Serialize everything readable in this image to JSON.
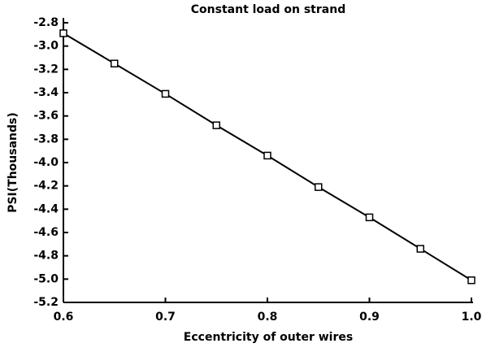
{
  "chart_data": {
    "type": "line",
    "title": "Constant load on strand",
    "xlabel": "Eccentricity of outer wires",
    "ylabel": "PSI(Thousands)",
    "x": [
      0.6,
      0.65,
      0.7,
      0.75,
      0.8,
      0.85,
      0.9,
      0.95,
      1.0
    ],
    "series": [
      {
        "color": "#000000",
        "values": [
          -2.89,
          -3.15,
          -3.41,
          -3.68,
          -3.94,
          -4.21,
          -4.47,
          -4.74,
          -5.01
        ]
      }
    ],
    "xlim": [
      0.6,
      1.0
    ],
    "xticks": [
      0.6,
      0.7,
      0.8,
      0.9,
      {
        "value": 1,
        "label": "1.0"
      }
    ],
    "ylim": [
      -5.2,
      -2.8
    ],
    "yticks": [
      -2.8,
      {
        "value": -3,
        "label": "-3.0"
      },
      -3.2,
      -3.4,
      -3.6,
      -3.8,
      {
        "value": -4,
        "label": "-4.0"
      },
      -4.2,
      -4.4,
      -4.6,
      -4.8,
      {
        "value": -5,
        "label": "-5.0"
      },
      -5.2
    ],
    "marker": "square"
  }
}
